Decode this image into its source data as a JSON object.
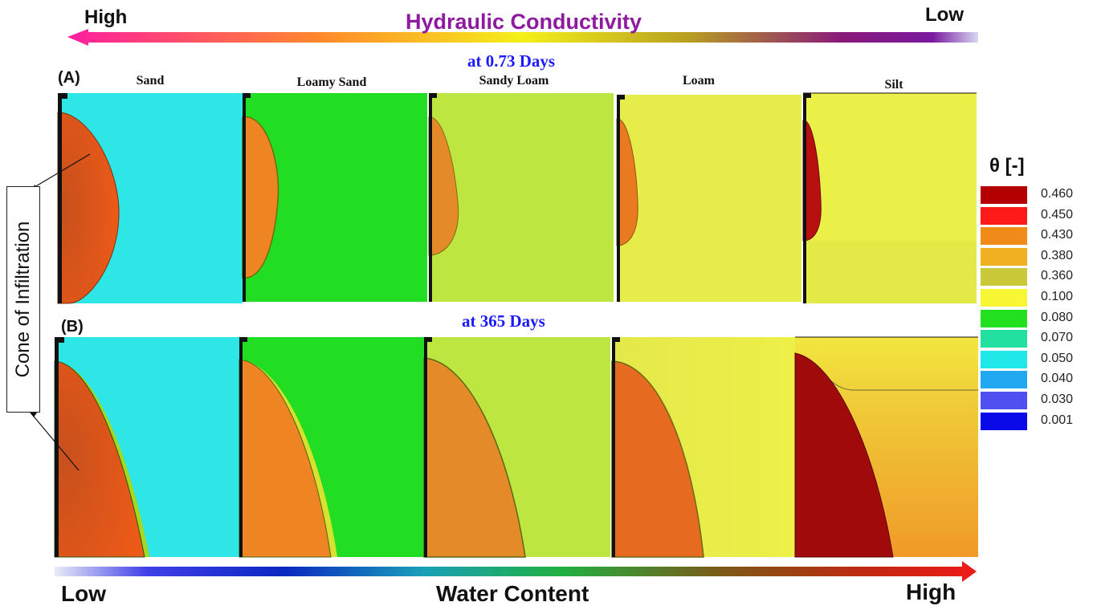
{
  "top_bar": {
    "left_label": "High",
    "right_label": "Low",
    "title": "Hydraulic Conductivity"
  },
  "panel_a": {
    "letter": "(A)",
    "time_label": "at 0.73 Days"
  },
  "panel_b": {
    "letter": "(B)",
    "time_label": "at 365 Days"
  },
  "soils": [
    "Sand",
    "Loamy Sand",
    "Sandy Loam",
    "Loam",
    "Silt"
  ],
  "side_box": {
    "label": "Cone of Infiltration"
  },
  "legend": {
    "title": "θ [-]",
    "items": [
      {
        "value": "0.460",
        "color": "#b40000"
      },
      {
        "value": "0.450",
        "color": "#ff1a1a"
      },
      {
        "value": "0.430",
        "color": "#f08a18"
      },
      {
        "value": "0.380",
        "color": "#f0b020"
      },
      {
        "value": "0.360",
        "color": "#c9c93a"
      },
      {
        "value": "0.100",
        "color": "#f7f733"
      },
      {
        "value": "0.080",
        "color": "#22e01e"
      },
      {
        "value": "0.070",
        "color": "#22e0a0"
      },
      {
        "value": "0.050",
        "color": "#20e8e8"
      },
      {
        "value": "0.040",
        "color": "#20a8f0"
      },
      {
        "value": "0.030",
        "color": "#5050f0"
      },
      {
        "value": "0.001",
        "color": "#0a0ae8"
      }
    ]
  },
  "bottom_bar": {
    "left_label": "Low",
    "title": "Water Content",
    "right_label": "High"
  }
}
